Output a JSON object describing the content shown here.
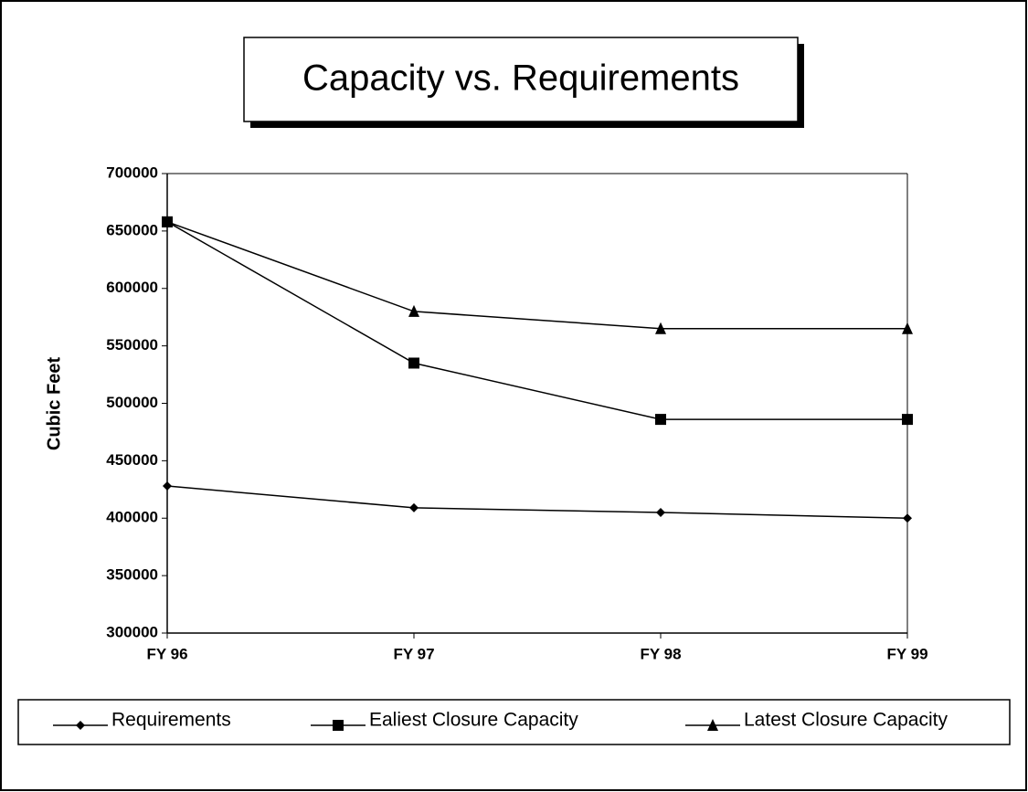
{
  "chart_data": {
    "type": "line",
    "title": "Capacity vs. Requirements",
    "y_label": "Cubic Feet",
    "categories": [
      "FY 96",
      "FY 97",
      "FY 98",
      "FY 99"
    ],
    "series": [
      {
        "name": "Requirements",
        "color": "#000000",
        "marker": "diamond",
        "values": [
          428000,
          409000,
          405000,
          400000
        ]
      },
      {
        "name": "Ealiest Closure Capacity",
        "color": "#000000",
        "marker": "square",
        "values": [
          658000,
          535000,
          486000,
          486000
        ]
      },
      {
        "name": "Latest Closure Capacity",
        "color": "#000000",
        "marker": "triangle",
        "values": [
          658000,
          580000,
          565000,
          565000
        ]
      }
    ],
    "ylim": [
      300000,
      700000
    ],
    "yticks": [
      300000,
      350000,
      400000,
      450000,
      500000,
      550000,
      600000,
      650000,
      700000
    ],
    "grid": false,
    "legend": "bottom"
  }
}
